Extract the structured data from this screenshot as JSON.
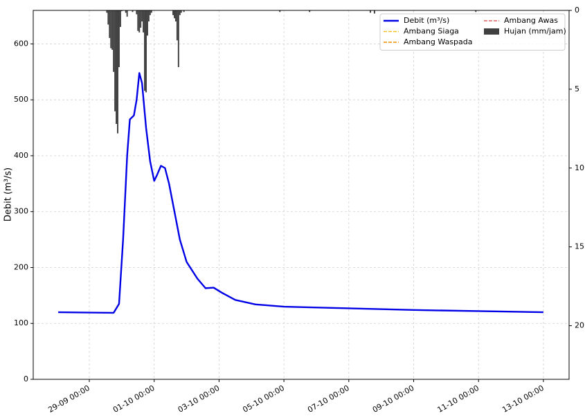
{
  "chart_data": {
    "type": "hydrograph",
    "y_label": "Debit (m³/s)",
    "xlim": [
      "27-09 06:30",
      "13-10 19:00"
    ],
    "xticks": [
      "29-09 00:00",
      "01-10 00:00",
      "03-10 00:00",
      "05-10 00:00",
      "07-10 00:00",
      "09-10 00:00",
      "11-10 00:00",
      "13-10 00:00"
    ],
    "ylim": [
      0,
      660
    ],
    "yticks": [
      0,
      100,
      200,
      300,
      400,
      500,
      600
    ],
    "y2lim": [
      0,
      23.4
    ],
    "y2ticks": [
      0,
      5,
      10,
      15,
      20
    ],
    "y2_inverted": true,
    "grid": true,
    "legend": "upper right",
    "series": [
      {
        "name": "Debit (m³/s)",
        "type": "line",
        "color": "#0000e6",
        "x": [
          "28-09 01:00",
          "29-09 18:00",
          "29-09 22:00",
          "30-09 01:00",
          "30-09 04:00",
          "30-09 06:00",
          "30-09 09:00",
          "30-09 11:00",
          "30-09 13:00",
          "30-09 15:00",
          "30-09 18:00",
          "30-09 21:00",
          "01-10 00:00",
          "01-10 02:00",
          "01-10 05:00",
          "01-10 08:00",
          "01-10 11:00",
          "01-10 15:00",
          "01-10 19:00",
          "02-10 00:00",
          "02-10 08:00",
          "02-10 14:00",
          "02-10 20:00",
          "03-10 02:00",
          "03-10 12:00",
          "04-10 03:00",
          "05-10 00:00",
          "07-10 00:00",
          "09-10 00:00",
          "11-10 00:00",
          "13-10 00:00"
        ],
        "values": [
          120,
          119,
          135,
          250,
          400,
          465,
          472,
          500,
          548,
          530,
          450,
          390,
          355,
          365,
          382,
          378,
          350,
          300,
          250,
          210,
          180,
          163,
          164,
          155,
          142,
          134,
          130,
          127,
          124,
          122,
          120
        ]
      },
      {
        "name": "Ambang Siaga",
        "type": "line",
        "style": "dashed",
        "color": "#f2c21b",
        "x": [],
        "values": []
      },
      {
        "name": "Ambang Waspada",
        "type": "line",
        "style": "dashed",
        "color": "#f08c00",
        "x": [],
        "values": []
      },
      {
        "name": "Ambang Awas",
        "type": "line",
        "style": "dashed",
        "color": "#e06060",
        "x": [],
        "values": []
      },
      {
        "name": "Hujan (mm/jam)",
        "type": "bar",
        "axis": "y2",
        "color": "#404040",
        "x": [
          "29-09 13:00",
          "29-09 14:00",
          "29-09 15:00",
          "29-09 16:00",
          "29-09 17:00",
          "29-09 18:00",
          "29-09 19:00",
          "29-09 20:00",
          "29-09 21:00",
          "29-09 22:00",
          "29-09 23:00",
          "30-09 00:00",
          "30-09 03:00",
          "30-09 04:00",
          "30-09 08:00",
          "30-09 11:00",
          "30-09 12:00",
          "30-09 13:00",
          "30-09 14:00",
          "30-09 15:00",
          "30-09 16:00",
          "30-09 17:00",
          "30-09 18:00",
          "30-09 19:00",
          "30-09 20:00",
          "30-09 21:00",
          "30-09 22:00",
          "01-10 14:00",
          "01-10 15:00",
          "01-10 16:00",
          "01-10 17:00",
          "01-10 18:00",
          "01-10 19:00",
          "01-10 20:00",
          "01-10 22:00",
          "04-10 21:00",
          "05-10 19:00",
          "07-10 16:00",
          "07-10 19:00",
          "10-10 22:00"
        ],
        "values": [
          0.15,
          0.9,
          1.75,
          2.4,
          2.5,
          3.9,
          6.4,
          7.2,
          7.8,
          3.6,
          1.05,
          0.05,
          0.15,
          0.4,
          0.1,
          0.25,
          1.3,
          1.4,
          1.1,
          0.7,
          1.4,
          5.1,
          5.2,
          1.6,
          0.7,
          0.3,
          0.15,
          0.3,
          0.5,
          0.7,
          1.9,
          3.6,
          0.3,
          0.15,
          0.1,
          0.1,
          0.1,
          0.15,
          0.2,
          0.1
        ]
      }
    ]
  }
}
